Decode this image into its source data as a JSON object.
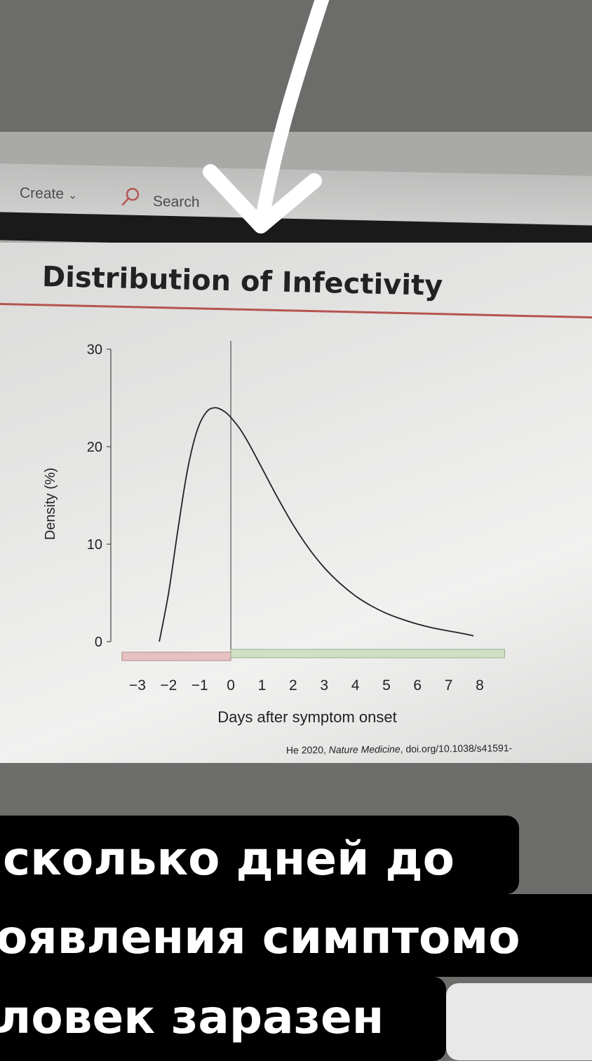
{
  "toolbar": {
    "create_label": "Create",
    "search_label": "Search"
  },
  "icons": {
    "search": "search-icon",
    "chevron": "chevron-down-icon",
    "arrow": "down-arrow-icon"
  },
  "slide": {
    "title": "Distribution of Infectivity",
    "citation_author": "He 2020,",
    "citation_journal": "Nature Medicine",
    "citation_rest": ", doi.org/10.1038/s41591-"
  },
  "chart_data": {
    "type": "line",
    "xlabel": "Days after symptom onset",
    "ylabel": "Density (%)",
    "xlim": [
      -3,
      8
    ],
    "ylim": [
      0,
      30
    ],
    "x_ticks": [
      "−3",
      "−2",
      "−1",
      "0",
      "1",
      "2",
      "3",
      "4",
      "5",
      "6",
      "7",
      "8"
    ],
    "y_ticks": [
      "0",
      "10",
      "20",
      "30"
    ],
    "vertical_line_x": 0,
    "series": [
      {
        "x": [
          -2.3,
          -2.0,
          -1.7,
          -1.4,
          -1.1,
          -0.8,
          -0.5,
          -0.2,
          0.0,
          0.3,
          0.6,
          1.0,
          1.5,
          2.0,
          2.5,
          3.0,
          3.5,
          4.0,
          4.5,
          5.0,
          5.5,
          6.0,
          6.5,
          7.0,
          7.5,
          7.8
        ],
        "y": [
          0.0,
          5.0,
          11.5,
          17.5,
          21.5,
          23.5,
          24.0,
          23.6,
          23.0,
          21.8,
          20.2,
          17.8,
          14.8,
          12.0,
          9.6,
          7.6,
          6.0,
          4.7,
          3.7,
          2.9,
          2.3,
          1.8,
          1.4,
          1.1,
          0.8,
          0.6
        ]
      }
    ],
    "colors": {
      "presymptomatic_bar": "#e7c1c1",
      "symptomatic_bar": "#cfe0c4",
      "curve": "#222222"
    }
  },
  "caption": {
    "line1": "сколько дней до",
    "line2": "оявления симптомо",
    "line3": "ловек заразен"
  }
}
